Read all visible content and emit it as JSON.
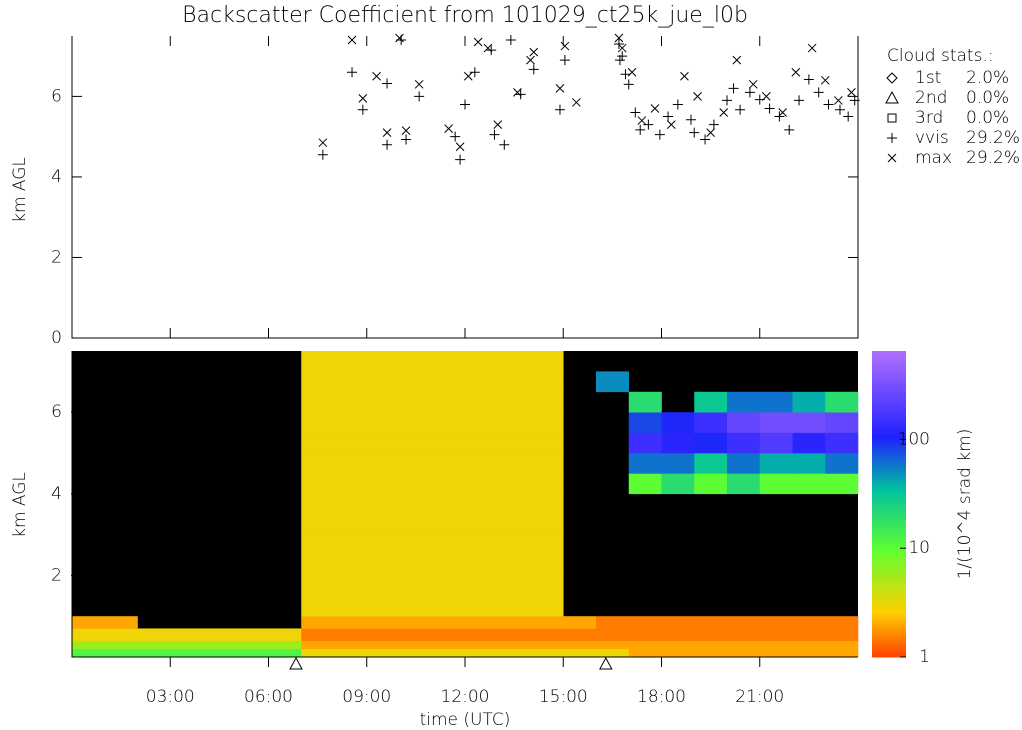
{
  "chart_data": [
    {
      "type": "scatter",
      "title": "Backscatter Coefficient from 101029_ct25k_jue_l0b",
      "y_label": "km AGL",
      "xlim": [
        0,
        24
      ],
      "ylim": [
        0,
        7.5
      ],
      "yticks": [
        0,
        2,
        4,
        6
      ],
      "legend_title": "Cloud stats.:",
      "legend_position": "right",
      "series": [
        {
          "name": "1st",
          "marker": "diamond",
          "color": "#000000",
          "share": {
            "value": 2.0,
            "label": "2.0%"
          },
          "x": [],
          "values": []
        },
        {
          "name": "2nd",
          "marker": "triangle",
          "color": "#000000",
          "share": {
            "value": 0.0,
            "label": "0.0%"
          },
          "x": [],
          "values": []
        },
        {
          "name": "3rd",
          "marker": "square",
          "color": "#000000",
          "share": {
            "value": 0.0,
            "label": "0.0%"
          },
          "x": [],
          "values": []
        },
        {
          "name": "vvis",
          "marker": "plus",
          "color": "#000000",
          "share": {
            "value": 29.2,
            "label": "29.2%"
          },
          "x": [
            7.66,
            8.55,
            8.88,
            9.62,
            9.62,
            10.05,
            10.2,
            10.6,
            11.7,
            11.85,
            12.0,
            12.3,
            12.8,
            12.9,
            13.2,
            13.4,
            13.7,
            14.1,
            14.9,
            15.05,
            16.7,
            16.8,
            16.73,
            16.9,
            17.0,
            17.2,
            17.35,
            17.6,
            17.95,
            18.2,
            18.5,
            18.9,
            19.0,
            19.33,
            19.6,
            20.0,
            20.2,
            20.4,
            20.7,
            21.0,
            21.3,
            21.6,
            21.9,
            22.2,
            22.5,
            22.8,
            23.1,
            23.45,
            23.7,
            23.9
          ],
          "values": [
            4.55,
            6.6,
            5.67,
            6.32,
            4.8,
            7.4,
            4.93,
            6.0,
            5.0,
            4.43,
            5.8,
            6.6,
            7.15,
            5.05,
            4.8,
            7.4,
            6.05,
            6.67,
            5.67,
            6.9,
            7.3,
            7.0,
            6.9,
            6.55,
            6.3,
            5.6,
            5.17,
            5.3,
            5.05,
            5.5,
            5.8,
            5.42,
            5.1,
            4.93,
            5.3,
            5.9,
            6.2,
            5.67,
            6.1,
            5.92,
            5.7,
            5.5,
            5.17,
            5.9,
            6.42,
            6.1,
            5.8,
            5.67,
            5.5,
            5.9
          ]
        },
        {
          "name": "max",
          "marker": "cross",
          "color": "#000000",
          "share": {
            "value": 29.2,
            "label": "29.2%"
          },
          "x": [
            7.66,
            8.55,
            8.88,
            9.3,
            9.62,
            10.0,
            10.2,
            10.6,
            11.5,
            11.85,
            12.1,
            12.4,
            12.7,
            13.0,
            13.6,
            14.0,
            14.1,
            14.9,
            15.05,
            15.4,
            16.7,
            16.8,
            17.1,
            17.4,
            17.8,
            18.3,
            18.7,
            19.1,
            19.5,
            19.9,
            20.3,
            20.8,
            21.2,
            21.7,
            22.1,
            22.6,
            23.0,
            23.4,
            23.8
          ],
          "values": [
            4.85,
            7.4,
            5.95,
            6.5,
            5.1,
            7.45,
            5.15,
            6.3,
            5.2,
            4.75,
            6.5,
            7.35,
            7.2,
            5.3,
            6.1,
            6.9,
            7.1,
            6.2,
            7.25,
            5.85,
            7.45,
            7.2,
            6.6,
            5.4,
            5.7,
            5.3,
            6.5,
            6.0,
            5.1,
            5.6,
            6.9,
            6.3,
            6.0,
            5.6,
            6.6,
            7.2,
            6.4,
            5.9,
            6.1
          ]
        }
      ]
    },
    {
      "type": "heatmap",
      "y_label": "km AGL",
      "x_label": "time (UTC)",
      "xlim": [
        0,
        24
      ],
      "ylim": [
        0,
        7.5
      ],
      "xticks": [
        {
          "value": 3,
          "label": "03:00"
        },
        {
          "value": 6,
          "label": "06:00"
        },
        {
          "value": 9,
          "label": "09:00"
        },
        {
          "value": 12,
          "label": "12:00"
        },
        {
          "value": 15,
          "label": "15:00"
        },
        {
          "value": 18,
          "label": "18:00"
        },
        {
          "value": 21,
          "label": "21:00"
        }
      ],
      "yticks": [
        2,
        4,
        6
      ],
      "xbins": [
        0,
        1,
        2,
        3,
        4,
        5,
        6,
        7,
        8,
        9,
        10,
        11,
        12,
        13,
        14,
        15,
        16,
        17,
        18,
        19,
        20,
        21,
        22,
        23,
        24
      ],
      "ybins": [
        0,
        0.2,
        0.4,
        0.7,
        1.0,
        2,
        3,
        4,
        4.5,
        5,
        5.5,
        6,
        6.5,
        7,
        7.5
      ],
      "values": [
        [
          12,
          12,
          12,
          12,
          12,
          12,
          12,
          3,
          3,
          3,
          3,
          3,
          3,
          3,
          3,
          3,
          3,
          2,
          2,
          2,
          2,
          2,
          2,
          2
        ],
        [
          6,
          6,
          6,
          6,
          6,
          6,
          6,
          2,
          2,
          2,
          2,
          2,
          2,
          2,
          2,
          2,
          2,
          2,
          2,
          2,
          2,
          2,
          2,
          2
        ],
        [
          3,
          3,
          3,
          3,
          3,
          3,
          3,
          1.5,
          1.5,
          1.5,
          1.5,
          1.5,
          1.5,
          1.5,
          1.5,
          1.5,
          1.5,
          1.5,
          1.5,
          1.5,
          1.5,
          1.5,
          1.5,
          1.5
        ],
        [
          2,
          2,
          null,
          null,
          null,
          null,
          null,
          2,
          2,
          2,
          2,
          2,
          2,
          2,
          2,
          2,
          1.5,
          1.5,
          1.5,
          1.5,
          1.5,
          1.5,
          1.5,
          1.5
        ],
        [
          null,
          null,
          null,
          null,
          null,
          null,
          null,
          3,
          3,
          3,
          3,
          3,
          3,
          3,
          3,
          null,
          null,
          null,
          null,
          null,
          null,
          null,
          null,
          null
        ],
        [
          null,
          null,
          null,
          null,
          null,
          null,
          null,
          3,
          3,
          3,
          3,
          3,
          3,
          3,
          3,
          null,
          null,
          null,
          null,
          null,
          null,
          null,
          null,
          null
        ],
        [
          null,
          null,
          null,
          null,
          null,
          null,
          null,
          3,
          3,
          3,
          3,
          3,
          3,
          3,
          3,
          null,
          null,
          null,
          null,
          null,
          null,
          null,
          null,
          null
        ],
        [
          null,
          null,
          null,
          null,
          null,
          null,
          null,
          3,
          3,
          3,
          3,
          3,
          3,
          3,
          3,
          null,
          null,
          10,
          20,
          10,
          20,
          10,
          10,
          10
        ],
        [
          null,
          null,
          null,
          null,
          null,
          null,
          null,
          3,
          3,
          3,
          3,
          3,
          3,
          3,
          3,
          null,
          null,
          60,
          60,
          30,
          60,
          40,
          40,
          60
        ],
        [
          null,
          null,
          null,
          null,
          null,
          null,
          null,
          3,
          3,
          3,
          3,
          3,
          3,
          3,
          3,
          null,
          null,
          150,
          120,
          100,
          150,
          200,
          120,
          150
        ],
        [
          null,
          null,
          null,
          null,
          null,
          null,
          null,
          3,
          3,
          3,
          3,
          3,
          3,
          3,
          3,
          null,
          null,
          80,
          100,
          150,
          250,
          300,
          300,
          250
        ],
        [
          null,
          null,
          null,
          null,
          null,
          null,
          null,
          3,
          3,
          3,
          3,
          3,
          3,
          3,
          3,
          null,
          null,
          20,
          null,
          30,
          60,
          60,
          40,
          20
        ],
        [
          null,
          null,
          null,
          null,
          null,
          null,
          null,
          3,
          3,
          3,
          3,
          3,
          3,
          3,
          3,
          null,
          50,
          null,
          null,
          null,
          null,
          null,
          null,
          null
        ],
        [
          null,
          null,
          null,
          null,
          null,
          null,
          null,
          3,
          3,
          3,
          3,
          3,
          3,
          3,
          3,
          null,
          null,
          null,
          null,
          null,
          null,
          null,
          null,
          null
        ]
      ],
      "background": "#000000",
      "colorbar_label": "1/(10^4 srad km)",
      "zlim": [
        1,
        650
      ],
      "zticks": [
        1,
        10,
        100
      ],
      "log_color": true,
      "events_x": [
        6.84,
        16.3
      ]
    }
  ]
}
